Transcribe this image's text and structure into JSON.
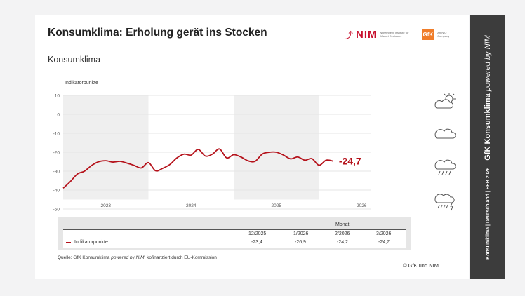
{
  "header": {
    "title": "Konsumklima: Erholung gerät ins Stocken",
    "subtitle": "Konsumklima",
    "logo_nim": "NIM",
    "logo_nim_sub": "Nuremberg Institute for Market Decisions",
    "logo_gfk": "GfK",
    "logo_gfk_sub": "An NIQ Company"
  },
  "chart_data": {
    "type": "line",
    "ylabel": "Indikatorpunkte",
    "ylim": [
      -50,
      10
    ],
    "yticks": [
      10,
      0,
      -10,
      -20,
      -30,
      -40,
      -50
    ],
    "xticks": [
      "2023",
      "2024",
      "2025",
      "2026"
    ],
    "grid": true,
    "shaded_years": [
      "2023",
      "2025"
    ],
    "color": "#b5121b",
    "x_start": "2023-01",
    "x_end": "2026-03",
    "series": [
      {
        "name": "Indikatorpunkte",
        "values": [
          -39.0,
          -35.5,
          -31.5,
          -30.0,
          -27.0,
          -25.0,
          -24.5,
          -25.2,
          -24.8,
          -25.8,
          -27.0,
          -28.3,
          -25.5,
          -29.8,
          -28.5,
          -26.5,
          -23.0,
          -21.0,
          -21.5,
          -18.5,
          -22.0,
          -21.0,
          -18.3,
          -23.0,
          -21.3,
          -22.5,
          -24.5,
          -24.8,
          -21.0,
          -20.0,
          -20.0,
          -21.5,
          -23.5,
          -22.5,
          -24.2,
          -23.4,
          -26.9,
          -24.2,
          -24.7
        ]
      }
    ],
    "last_label": "-24,7"
  },
  "table": {
    "group_header": "Monat",
    "columns": [
      "12/2025",
      "1/2026",
      "2/2026",
      "3/2026"
    ],
    "row_label": "Indikatorpunkte",
    "values": [
      "-23,4",
      "-26,9",
      "-24,2",
      "-24,7"
    ]
  },
  "footer": {
    "source_prefix": "Quelle: GfK Konsumklima ",
    "source_italic": "powered by NIM",
    "source_suffix": ", kofinanziert durch EU-Kommission",
    "copyright": "© GfK und NIM"
  },
  "sidebar": {
    "meta": "Konsumklima | Deutschland | FEB 2026",
    "brand": "GfK Konsumklima ",
    "brand_italic": "powered by NIM"
  },
  "icons": [
    "sun-cloud-icon",
    "cloud-icon",
    "rain-cloud-icon",
    "thunderstorm-icon"
  ]
}
